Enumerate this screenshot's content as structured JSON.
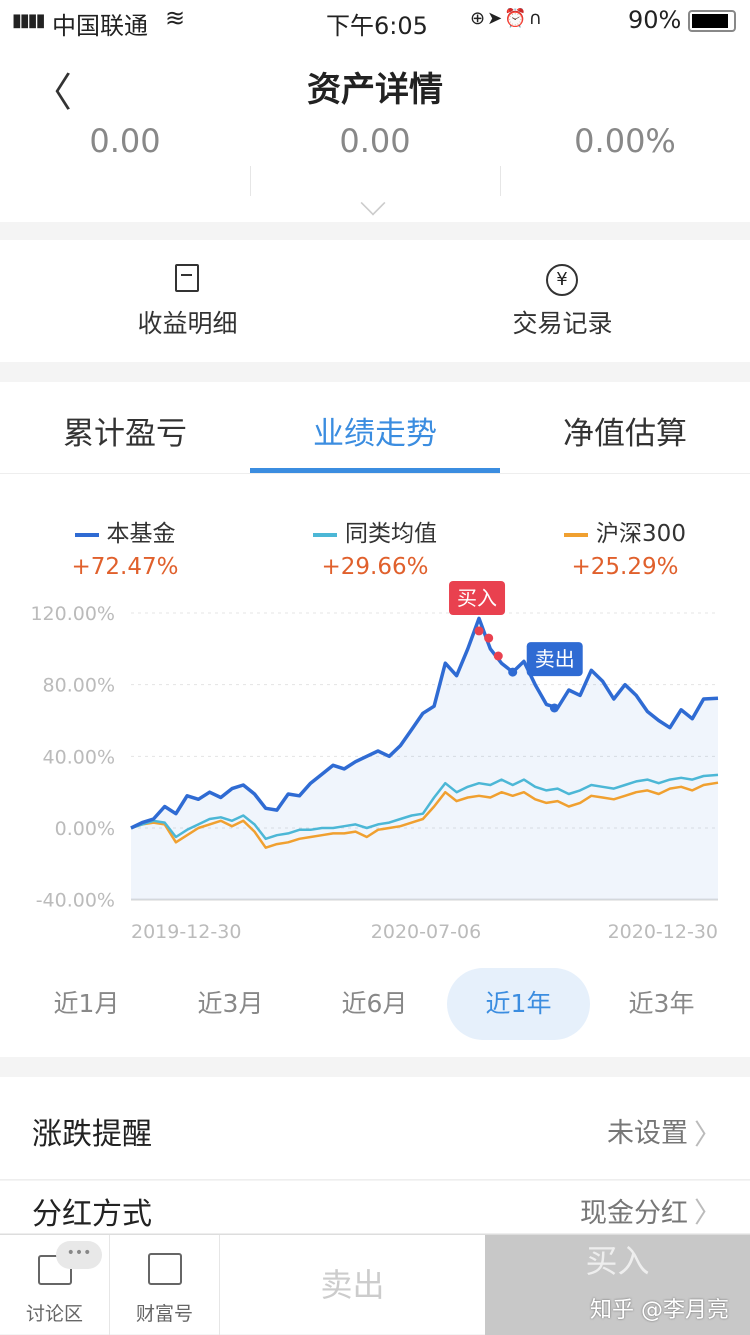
{
  "status_bar": {
    "carrier": "中国联通",
    "time": "下午6:05",
    "battery": "90%"
  },
  "header": {
    "title": "资产详情"
  },
  "summary": {
    "values": [
      "0.00",
      "0.00",
      "0.00%"
    ]
  },
  "quick_actions": [
    {
      "label": "收益明细",
      "icon": "document-icon"
    },
    {
      "label": "交易记录",
      "icon": "yen-circle-icon"
    }
  ],
  "tabs": [
    {
      "label": "累计盈亏"
    },
    {
      "label": "业绩走势",
      "active": true
    },
    {
      "label": "净值估算"
    }
  ],
  "legend": [
    {
      "name": "本基金",
      "pct": "+72.47%",
      "color": "#2f6bd3"
    },
    {
      "name": "同类均值",
      "pct": "+29.66%",
      "color": "#4cb7d6"
    },
    {
      "name": "沪深300",
      "pct": "+25.29%",
      "color": "#f0a030"
    }
  ],
  "chart_data": {
    "type": "line",
    "ylim": [
      -40,
      120
    ],
    "yticks": [
      "120.00%",
      "80.00%",
      "40.00%",
      "0.00%",
      "-40.00%"
    ],
    "ytick_values": [
      120,
      80,
      40,
      0,
      -40
    ],
    "xtick_labels": [
      "2019-12-30",
      "2020-07-06",
      "2020-12-30"
    ],
    "grid": true,
    "x": [
      "2019-12-30",
      "2020-01-06",
      "2020-01-13",
      "2020-01-20",
      "2020-01-27",
      "2020-02-03",
      "2020-02-10",
      "2020-02-17",
      "2020-02-24",
      "2020-03-02",
      "2020-03-09",
      "2020-03-16",
      "2020-03-23",
      "2020-03-30",
      "2020-04-06",
      "2020-04-13",
      "2020-04-20",
      "2020-04-27",
      "2020-05-04",
      "2020-05-11",
      "2020-05-18",
      "2020-05-25",
      "2020-06-01",
      "2020-06-08",
      "2020-06-15",
      "2020-06-22",
      "2020-06-29",
      "2020-07-06",
      "2020-07-13",
      "2020-07-20",
      "2020-07-27",
      "2020-08-03",
      "2020-08-10",
      "2020-08-17",
      "2020-08-24",
      "2020-08-31",
      "2020-09-07",
      "2020-09-14",
      "2020-09-21",
      "2020-09-28",
      "2020-10-05",
      "2020-10-12",
      "2020-10-19",
      "2020-10-26",
      "2020-11-02",
      "2020-11-09",
      "2020-11-16",
      "2020-11-23",
      "2020-11-30",
      "2020-12-07",
      "2020-12-14",
      "2020-12-21",
      "2020-12-30"
    ],
    "series": [
      {
        "name": "本基金",
        "color": "#2f6bd3",
        "values": [
          0,
          3,
          5,
          12,
          8,
          18,
          16,
          20,
          17,
          22,
          24,
          19,
          11,
          10,
          19,
          18,
          25,
          30,
          35,
          33,
          37,
          40,
          43,
          40,
          46,
          55,
          64,
          68,
          92,
          85,
          100,
          117,
          100,
          92,
          87,
          93,
          80,
          69,
          67,
          77,
          74,
          88,
          82,
          72,
          80,
          74,
          65,
          60,
          56,
          66,
          61,
          72,
          72.47
        ]
      },
      {
        "name": "同类均值",
        "color": "#4cb7d6",
        "values": [
          0,
          2,
          4,
          3,
          -5,
          -1,
          2,
          5,
          6,
          4,
          7,
          2,
          -6,
          -4,
          -3,
          -1,
          -1,
          0,
          0,
          1,
          2,
          0,
          2,
          3,
          5,
          7,
          8,
          17,
          25,
          20,
          23,
          25,
          24,
          27,
          24,
          27,
          23,
          21,
          22,
          19,
          21,
          24,
          23,
          22,
          24,
          26,
          27,
          25,
          27,
          28,
          27,
          29,
          29.66
        ]
      },
      {
        "name": "沪深300",
        "color": "#f0a030",
        "values": [
          0,
          2,
          3,
          2,
          -8,
          -4,
          0,
          2,
          4,
          1,
          4,
          -2,
          -11,
          -9,
          -8,
          -6,
          -5,
          -4,
          -3,
          -3,
          -2,
          -5,
          -1,
          0,
          1,
          3,
          5,
          12,
          20,
          15,
          17,
          18,
          17,
          20,
          18,
          20,
          16,
          14,
          15,
          12,
          14,
          18,
          17,
          16,
          18,
          20,
          21,
          19,
          22,
          23,
          21,
          24,
          25.29
        ]
      }
    ],
    "annotations": {
      "buy": {
        "label": "买入",
        "color": "#e9414f",
        "points": [
          {
            "x": "2020-08-03",
            "y": 110
          },
          {
            "x": "2020-08-09",
            "y": 106
          },
          {
            "x": "2020-08-15",
            "y": 96
          }
        ]
      },
      "sell": {
        "label": "卖出",
        "color": "#2f6bd3",
        "points": [
          {
            "x": "2020-08-24",
            "y": 87
          },
          {
            "x": "2020-09-19",
            "y": 67
          }
        ]
      }
    }
  },
  "periods": [
    {
      "label": "近1月"
    },
    {
      "label": "近3月"
    },
    {
      "label": "近6月"
    },
    {
      "label": "近1年",
      "selected": true
    },
    {
      "label": "近3年"
    }
  ],
  "settings": [
    {
      "label": "涨跌提醒",
      "value": "未设置"
    },
    {
      "label": "分红方式",
      "value": "现金分红"
    }
  ],
  "bottom_bar": {
    "discuss": "讨论区",
    "wealth": "财富号",
    "sell": "卖出",
    "buy": "买入",
    "watermark": "知乎 @李月亮"
  }
}
